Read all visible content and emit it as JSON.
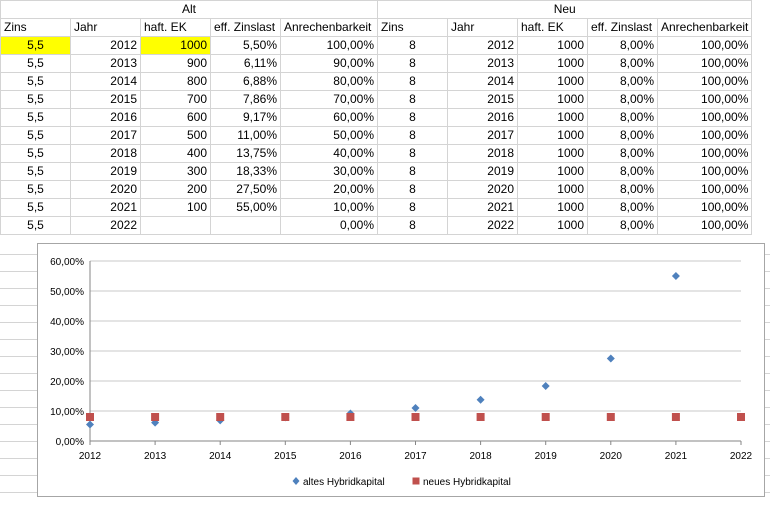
{
  "sections": {
    "alt": "Alt",
    "neu": "Neu"
  },
  "headers": [
    "Zins",
    "Jahr",
    "haft. EK",
    "eff. Zinslast",
    "Anrechenbarkeit",
    "Zins",
    "Jahr",
    "haft. EK",
    "eff. Zinslast",
    "Anrechenbarkeit"
  ],
  "rows": [
    [
      "5,5",
      "2012",
      "1000",
      "5,50%",
      "100,00%",
      "8",
      "2012",
      "1000",
      "8,00%",
      "100,00%"
    ],
    [
      "5,5",
      "2013",
      "900",
      "6,11%",
      "90,00%",
      "8",
      "2013",
      "1000",
      "8,00%",
      "100,00%"
    ],
    [
      "5,5",
      "2014",
      "800",
      "6,88%",
      "80,00%",
      "8",
      "2014",
      "1000",
      "8,00%",
      "100,00%"
    ],
    [
      "5,5",
      "2015",
      "700",
      "7,86%",
      "70,00%",
      "8",
      "2015",
      "1000",
      "8,00%",
      "100,00%"
    ],
    [
      "5,5",
      "2016",
      "600",
      "9,17%",
      "60,00%",
      "8",
      "2016",
      "1000",
      "8,00%",
      "100,00%"
    ],
    [
      "5,5",
      "2017",
      "500",
      "11,00%",
      "50,00%",
      "8",
      "2017",
      "1000",
      "8,00%",
      "100,00%"
    ],
    [
      "5,5",
      "2018",
      "400",
      "13,75%",
      "40,00%",
      "8",
      "2018",
      "1000",
      "8,00%",
      "100,00%"
    ],
    [
      "5,5",
      "2019",
      "300",
      "18,33%",
      "30,00%",
      "8",
      "2019",
      "1000",
      "8,00%",
      "100,00%"
    ],
    [
      "5,5",
      "2020",
      "200",
      "27,50%",
      "20,00%",
      "8",
      "2020",
      "1000",
      "8,00%",
      "100,00%"
    ],
    [
      "5,5",
      "2021",
      "100",
      "55,00%",
      "10,00%",
      "8",
      "2021",
      "1000",
      "8,00%",
      "100,00%"
    ],
    [
      "5,5",
      "2022",
      "",
      "",
      "0,00%",
      "8",
      "2022",
      "1000",
      "8,00%",
      "100,00%"
    ]
  ],
  "highlight_color": "#ffff00",
  "chart_data": {
    "type": "scatter",
    "x_ticks": [
      "2012",
      "2013",
      "2014",
      "2015",
      "2016",
      "2017",
      "2018",
      "2019",
      "2020",
      "2021",
      "2022"
    ],
    "y_ticks": [
      "0,00%",
      "10,00%",
      "20,00%",
      "30,00%",
      "40,00%",
      "50,00%",
      "60,00%"
    ],
    "ylim": [
      0,
      60
    ],
    "xlim": [
      2012,
      2022
    ],
    "grid": "horizontal",
    "legend_position": "bottom",
    "series": [
      {
        "name": "altes Hybridkapital",
        "color": "#4f81bd",
        "marker": "diamond",
        "x": [
          2012,
          2013,
          2014,
          2015,
          2016,
          2017,
          2018,
          2019,
          2020,
          2021
        ],
        "y": [
          5.5,
          6.11,
          6.88,
          7.86,
          9.17,
          11.0,
          13.75,
          18.33,
          27.5,
          55.0
        ]
      },
      {
        "name": "neues Hybridkapital",
        "color": "#c0504d",
        "marker": "square",
        "x": [
          2012,
          2013,
          2014,
          2015,
          2016,
          2017,
          2018,
          2019,
          2020,
          2021,
          2022
        ],
        "y": [
          8,
          8,
          8,
          8,
          8,
          8,
          8,
          8,
          8,
          8,
          8
        ]
      }
    ]
  }
}
